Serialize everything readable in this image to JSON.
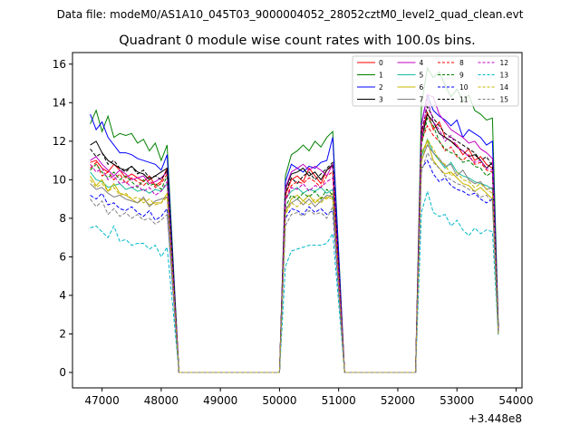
{
  "chart_data": {
    "type": "line",
    "suptitle": "Data file: modeM0/AS1A10_045T03_9000004052_28052cztM0_level2_quad_clean.evt",
    "title": "Quadrant 0 module wise count rates with 100.0s bins.",
    "xlabel": "",
    "ylabel": "",
    "x_offset_label": "+3.448e8",
    "xlim": [
      46500,
      54100
    ],
    "ylim": [
      -0.8,
      16.6
    ],
    "xticks": [
      47000,
      48000,
      49000,
      50000,
      51000,
      52000,
      53000,
      54000
    ],
    "yticks": [
      0,
      2,
      4,
      6,
      8,
      10,
      12,
      14,
      16
    ],
    "legend_position": "upper-right",
    "legend_columns": 4,
    "segments": [
      {
        "x_start": 46800,
        "x_end": 48100,
        "n_points": 14
      },
      {
        "x_start": 48300,
        "x_end": 50000,
        "n_points": 18
      },
      {
        "x_start": 50100,
        "x_end": 50900,
        "n_points": 9
      },
      {
        "x_start": 51100,
        "x_end": 52300,
        "n_points": 13
      },
      {
        "x_start": 52400,
        "x_end": 53700,
        "n_points": 14
      }
    ],
    "series": [
      {
        "name": "0",
        "color": "#ff0000",
        "dash": "solid",
        "values": [
          10.9,
          11.0,
          10.6,
          10.4,
          10.8,
          10.5,
          10.1,
          10.3,
          10.1,
          9.9,
          10.2,
          9.7,
          9.9,
          10.6,
          0,
          0,
          0,
          0,
          0,
          0,
          0,
          0,
          0,
          0,
          0,
          0,
          0,
          0,
          0,
          0,
          0,
          0,
          9.2,
          10.0,
          10.2,
          9.9,
          10.6,
          10.2,
          9.8,
          10.5,
          10.7,
          0,
          0,
          0,
          0,
          0,
          0,
          0,
          0,
          0,
          0,
          0,
          0,
          0,
          12.4,
          13.5,
          12.6,
          13.0,
          12.2,
          12.0,
          11.8,
          11.3,
          11.6,
          11.0,
          11.2,
          10.8,
          10.6,
          2.2
        ]
      },
      {
        "name": "1",
        "color": "#008000",
        "dash": "solid",
        "values": [
          12.9,
          13.6,
          12.5,
          13.3,
          12.2,
          12.4,
          12.3,
          12.4,
          11.9,
          12.1,
          11.5,
          11.9,
          11.0,
          11.8,
          0,
          0,
          0,
          0,
          0,
          0,
          0,
          0,
          0,
          0,
          0,
          0,
          0,
          0,
          0,
          0,
          0,
          0,
          10.2,
          11.3,
          11.5,
          11.8,
          11.5,
          12.0,
          11.7,
          12.2,
          12.5,
          0,
          0,
          0,
          0,
          0,
          0,
          0,
          0,
          0,
          0,
          0,
          0,
          0,
          13.9,
          15.8,
          15.3,
          15.6,
          14.9,
          14.3,
          14.7,
          14.1,
          14.4,
          13.6,
          13.4,
          13.1,
          13.2,
          2.4
        ]
      },
      {
        "name": "2",
        "color": "#0000ff",
        "dash": "solid",
        "values": [
          13.4,
          12.6,
          13.0,
          12.2,
          11.8,
          11.4,
          11.4,
          11.3,
          11.1,
          11.0,
          10.9,
          10.8,
          10.5,
          11.3,
          0,
          0,
          0,
          0,
          0,
          0,
          0,
          0,
          0,
          0,
          0,
          0,
          0,
          0,
          0,
          0,
          0,
          0,
          9.9,
          10.8,
          10.6,
          10.4,
          10.7,
          10.6,
          10.9,
          11.0,
          12.2,
          0,
          0,
          0,
          0,
          0,
          0,
          0,
          0,
          0,
          0,
          0,
          0,
          0,
          12.9,
          14.4,
          13.6,
          13.3,
          13.1,
          12.8,
          13.1,
          12.2,
          12.6,
          12.4,
          12.2,
          11.8,
          12.0,
          2.3
        ]
      },
      {
        "name": "3",
        "color": "#000000",
        "dash": "solid",
        "values": [
          11.8,
          12.0,
          11.4,
          11.0,
          10.8,
          10.6,
          10.5,
          10.7,
          10.4,
          10.3,
          10.0,
          10.2,
          10.4,
          10.6,
          0,
          0,
          0,
          0,
          0,
          0,
          0,
          0,
          0,
          0,
          0,
          0,
          0,
          0,
          0,
          0,
          0,
          0,
          9.5,
          10.3,
          10.4,
          10.6,
          10.2,
          10.4,
          10.0,
          10.5,
          10.8,
          0,
          0,
          0,
          0,
          0,
          0,
          0,
          0,
          0,
          0,
          0,
          0,
          0,
          12.1,
          13.4,
          13.0,
          12.4,
          12.2,
          12.0,
          11.7,
          11.5,
          11.2,
          11.3,
          11.0,
          10.6,
          10.9,
          2.2
        ]
      },
      {
        "name": "4",
        "color": "#c000c0",
        "dash": "solid",
        "values": [
          11.0,
          11.2,
          10.8,
          10.5,
          10.2,
          10.5,
          10.3,
          10.0,
          10.1,
          10.2,
          9.8,
          9.9,
          10.1,
          10.4,
          0,
          0,
          0,
          0,
          0,
          0,
          0,
          0,
          0,
          0,
          0,
          0,
          0,
          0,
          0,
          0,
          0,
          0,
          9.6,
          10.4,
          10.6,
          10.8,
          10.5,
          10.7,
          10.5,
          10.2,
          10.8,
          0,
          0,
          0,
          0,
          0,
          0,
          0,
          0,
          0,
          0,
          0,
          0,
          0,
          12.8,
          14.4,
          14.3,
          13.4,
          13.0,
          12.6,
          12.4,
          12.2,
          11.9,
          12.0,
          11.6,
          11.4,
          11.1,
          2.1
        ]
      },
      {
        "name": "5",
        "color": "#1abc9c",
        "dash": "solid",
        "values": [
          10.4,
          10.0,
          9.9,
          9.6,
          9.7,
          9.8,
          9.5,
          9.6,
          9.4,
          9.5,
          9.3,
          9.5,
          9.4,
          9.8,
          0,
          0,
          0,
          0,
          0,
          0,
          0,
          0,
          0,
          0,
          0,
          0,
          0,
          0,
          0,
          0,
          0,
          0,
          9.0,
          9.4,
          9.6,
          9.3,
          9.5,
          9.4,
          9.6,
          9.3,
          9.5,
          0,
          0,
          0,
          0,
          0,
          0,
          0,
          0,
          0,
          0,
          0,
          0,
          0,
          11.2,
          12.1,
          11.4,
          11.0,
          10.6,
          10.9,
          10.4,
          10.2,
          10.1,
          9.9,
          9.8,
          9.7,
          9.5,
          2.0
        ]
      },
      {
        "name": "6",
        "color": "#c8b400",
        "dash": "solid",
        "values": [
          10.2,
          9.7,
          10.0,
          9.4,
          9.8,
          9.3,
          9.2,
          9.0,
          8.8,
          9.0,
          8.7,
          8.8,
          8.8,
          9.3,
          0,
          0,
          0,
          0,
          0,
          0,
          0,
          0,
          0,
          0,
          0,
          0,
          0,
          0,
          0,
          0,
          0,
          0,
          8.3,
          9.0,
          9.2,
          8.9,
          9.2,
          8.8,
          9.1,
          9.0,
          9.3,
          0,
          0,
          0,
          0,
          0,
          0,
          0,
          0,
          0,
          0,
          0,
          0,
          0,
          11.4,
          12.0,
          11.0,
          10.6,
          10.3,
          10.4,
          10.1,
          9.8,
          9.7,
          9.4,
          9.6,
          9.3,
          9.0,
          2.0
        ]
      },
      {
        "name": "7",
        "color": "#808080",
        "dash": "solid",
        "values": [
          9.8,
          9.5,
          9.6,
          9.3,
          9.1,
          9.2,
          9.0,
          8.9,
          8.8,
          9.1,
          8.6,
          8.9,
          9.0,
          9.1,
          0,
          0,
          0,
          0,
          0,
          0,
          0,
          0,
          0,
          0,
          0,
          0,
          0,
          0,
          0,
          0,
          0,
          0,
          8.5,
          8.8,
          9.0,
          8.7,
          9.0,
          8.6,
          8.9,
          9.2,
          9.1,
          0,
          0,
          0,
          0,
          0,
          0,
          0,
          0,
          0,
          0,
          0,
          0,
          0,
          11.0,
          11.8,
          11.4,
          11.1,
          10.7,
          10.8,
          10.2,
          10.5,
          10.0,
          9.8,
          9.9,
          9.5,
          9.6,
          2.0
        ]
      },
      {
        "name": "8",
        "color": "#ff0000",
        "dash": "dashed",
        "values": [
          10.6,
          10.9,
          10.2,
          10.4,
          10.0,
          10.3,
          9.8,
          10.1,
          9.9,
          9.7,
          10.0,
          9.6,
          9.8,
          10.3,
          0,
          0,
          0,
          0,
          0,
          0,
          0,
          0,
          0,
          0,
          0,
          0,
          0,
          0,
          0,
          0,
          0,
          0,
          9.0,
          9.7,
          9.9,
          9.8,
          10.1,
          9.9,
          9.6,
          10.2,
          10.4,
          0,
          0,
          0,
          0,
          0,
          0,
          0,
          0,
          0,
          0,
          0,
          0,
          0,
          12.0,
          12.8,
          12.3,
          12.0,
          11.5,
          11.7,
          11.2,
          11.0,
          11.3,
          10.8,
          10.9,
          10.5,
          10.4,
          2.1
        ]
      },
      {
        "name": "9",
        "color": "#008000",
        "dash": "dashed",
        "values": [
          10.5,
          10.8,
          10.4,
          10.1,
          10.4,
          10.0,
          10.2,
          9.9,
          9.6,
          10.0,
          9.7,
          9.8,
          9.5,
          10.2,
          0,
          0,
          0,
          0,
          0,
          0,
          0,
          0,
          0,
          0,
          0,
          0,
          0,
          0,
          0,
          0,
          0,
          0,
          8.6,
          9.2,
          9.0,
          9.3,
          9.1,
          9.4,
          9.0,
          9.5,
          9.2,
          0,
          0,
          0,
          0,
          0,
          0,
          0,
          0,
          0,
          0,
          0,
          0,
          0,
          11.8,
          13.2,
          12.8,
          12.0,
          11.6,
          11.4,
          11.3,
          10.9,
          11.0,
          10.7,
          10.6,
          10.2,
          10.4,
          2.1
        ]
      },
      {
        "name": "10",
        "color": "#0000ff",
        "dash": "dashed",
        "values": [
          9.2,
          9.0,
          9.3,
          8.7,
          8.8,
          8.5,
          8.4,
          8.6,
          8.3,
          8.1,
          8.4,
          7.9,
          8.1,
          8.5,
          0,
          0,
          0,
          0,
          0,
          0,
          0,
          0,
          0,
          0,
          0,
          0,
          0,
          0,
          0,
          0,
          0,
          0,
          8.0,
          8.5,
          8.4,
          8.2,
          8.6,
          8.3,
          8.5,
          8.2,
          8.4,
          0,
          0,
          0,
          0,
          0,
          0,
          0,
          0,
          0,
          0,
          0,
          0,
          0,
          10.6,
          11.0,
          10.3,
          9.9,
          10.1,
          9.7,
          9.5,
          9.4,
          9.2,
          9.3,
          9.0,
          8.8,
          9.0,
          2.0
        ]
      },
      {
        "name": "11",
        "color": "#000000",
        "dash": "dashed",
        "values": [
          11.6,
          11.2,
          11.4,
          10.8,
          11.0,
          10.6,
          10.4,
          10.7,
          10.3,
          10.5,
          10.1,
          10.2,
          10.0,
          10.5,
          0,
          0,
          0,
          0,
          0,
          0,
          0,
          0,
          0,
          0,
          0,
          0,
          0,
          0,
          0,
          0,
          0,
          0,
          9.3,
          10.1,
          9.8,
          10.2,
          10.4,
          10.0,
          10.3,
          10.6,
          10.9,
          0,
          0,
          0,
          0,
          0,
          0,
          0,
          0,
          0,
          0,
          0,
          0,
          0,
          12.5,
          13.8,
          13.2,
          12.8,
          12.4,
          12.2,
          12.0,
          11.8,
          11.6,
          11.4,
          11.0,
          11.2,
          10.7,
          2.2
        ]
      },
      {
        "name": "12",
        "color": "#c000c0",
        "dash": "dashed",
        "values": [
          10.8,
          10.4,
          10.6,
          10.0,
          10.2,
          9.8,
          9.9,
          9.6,
          9.7,
          9.4,
          9.6,
          9.2,
          9.4,
          9.9,
          0,
          0,
          0,
          0,
          0,
          0,
          0,
          0,
          0,
          0,
          0,
          0,
          0,
          0,
          0,
          0,
          0,
          0,
          8.9,
          9.6,
          9.5,
          9.8,
          9.4,
          9.7,
          9.6,
          9.9,
          10.1,
          0,
          0,
          0,
          0,
          0,
          0,
          0,
          0,
          0,
          0,
          0,
          0,
          0,
          12.0,
          14.2,
          13.0,
          12.6,
          12.0,
          12.3,
          11.7,
          11.5,
          11.2,
          10.9,
          11.0,
          10.6,
          10.5,
          2.1
        ]
      },
      {
        "name": "13",
        "color": "#00b8c8",
        "dash": "dashed",
        "values": [
          7.5,
          7.6,
          7.3,
          7.0,
          7.6,
          6.8,
          6.9,
          6.6,
          6.7,
          6.7,
          6.4,
          6.6,
          6.0,
          6.5,
          0,
          0,
          0,
          0,
          0,
          0,
          0,
          0,
          0,
          0,
          0,
          0,
          0,
          0,
          0,
          0,
          0,
          0,
          5.5,
          6.3,
          6.4,
          6.5,
          6.6,
          6.6,
          6.6,
          6.7,
          7.2,
          0,
          0,
          0,
          0,
          0,
          0,
          0,
          0,
          0,
          0,
          0,
          0,
          0,
          8.3,
          9.4,
          8.3,
          8.1,
          8.2,
          7.6,
          7.9,
          7.4,
          7.1,
          7.5,
          7.2,
          7.4,
          7.3,
          1.9
        ]
      },
      {
        "name": "14",
        "color": "#c8b400",
        "dash": "dashed",
        "values": [
          10.0,
          9.6,
          9.8,
          9.4,
          9.6,
          9.2,
          9.3,
          9.0,
          9.1,
          8.8,
          9.0,
          8.7,
          8.8,
          9.1,
          0,
          0,
          0,
          0,
          0,
          0,
          0,
          0,
          0,
          0,
          0,
          0,
          0,
          0,
          0,
          0,
          0,
          0,
          8.2,
          8.8,
          8.6,
          8.9,
          8.7,
          9.0,
          8.8,
          9.1,
          9.0,
          0,
          0,
          0,
          0,
          0,
          0,
          0,
          0,
          0,
          0,
          0,
          0,
          0,
          10.9,
          12.1,
          11.6,
          11.0,
          10.8,
          10.2,
          10.4,
          10.0,
          9.9,
          9.6,
          9.8,
          9.5,
          9.3,
          2.0
        ]
      },
      {
        "name": "15",
        "color": "#808080",
        "dash": "dashed",
        "values": [
          9.0,
          8.6,
          8.9,
          8.2,
          8.5,
          8.1,
          8.3,
          8.0,
          8.2,
          7.9,
          8.0,
          7.7,
          7.9,
          8.2,
          0,
          0,
          0,
          0,
          0,
          0,
          0,
          0,
          0,
          0,
          0,
          0,
          0,
          0,
          0,
          0,
          0,
          0,
          7.6,
          8.2,
          8.3,
          8.1,
          8.4,
          8.2,
          8.3,
          8.0,
          8.6,
          0,
          0,
          0,
          0,
          0,
          0,
          0,
          0,
          0,
          0,
          0,
          0,
          0,
          10.4,
          11.4,
          10.9,
          10.6,
          10.2,
          10.0,
          9.8,
          9.7,
          9.5,
          9.4,
          9.1,
          9.2,
          8.8,
          2.0
        ]
      }
    ]
  }
}
